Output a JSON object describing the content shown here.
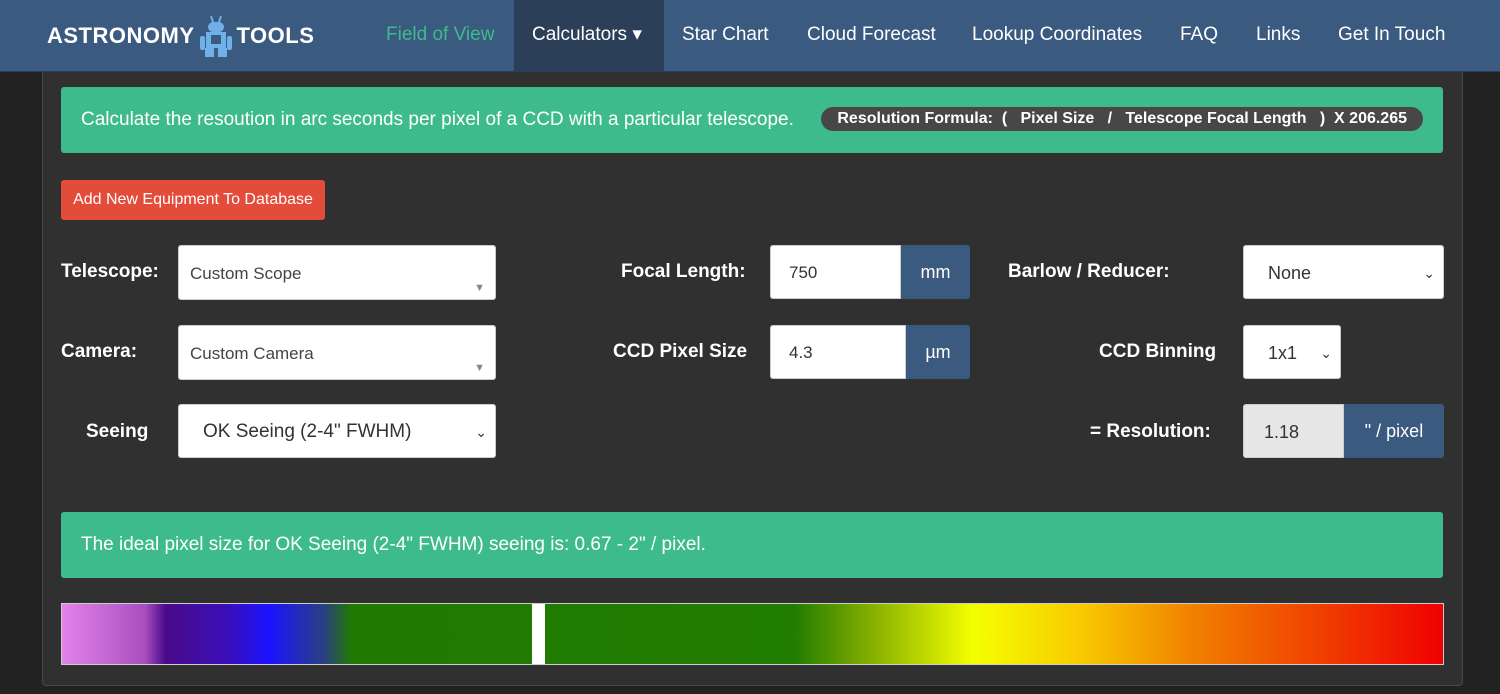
{
  "nav": {
    "logo_text_left": "ASTRONOMY",
    "logo_text_right": "TOOLS",
    "items": [
      {
        "label": "Field of View",
        "active": true
      },
      {
        "label": "Calculators ▾"
      },
      {
        "label": "Star Chart"
      },
      {
        "label": "Cloud Forecast"
      },
      {
        "label": "Lookup Coordinates"
      },
      {
        "label": "FAQ"
      },
      {
        "label": "Links"
      },
      {
        "label": "Get In Touch"
      }
    ]
  },
  "intro": {
    "text": "Calculate the resoution in arc seconds per pixel of a CCD with a particular telescope.",
    "formula": "Resolution Formula:  (   Pixel Size   /   Telescope Focal Length   )  X 206.265"
  },
  "add_equipment_label": "Add New Equipment To Database",
  "form": {
    "telescope_label": "Telescope:",
    "telescope_value": "Custom Scope",
    "camera_label": "Camera:",
    "camera_value": "Custom Camera",
    "seeing_label": "Seeing",
    "seeing_value": "OK Seeing (2-4\" FWHM)",
    "focal_length_label": "Focal Length:",
    "focal_length_value": "750",
    "focal_length_unit": "mm",
    "pixel_size_label": "CCD Pixel Size",
    "pixel_size_value": "4.3",
    "pixel_size_unit": "µm",
    "barlow_label": "Barlow / Reducer:",
    "barlow_value": "None",
    "binning_label": "CCD Binning",
    "binning_value": "1x1",
    "resolution_label": "=  Resolution:",
    "resolution_value": "1.18",
    "resolution_unit": "\" / pixel"
  },
  "ideal_text": "The ideal pixel size for OK Seeing (2-4\" FWHM) seeing is: 0.67 - 2\" / pixel.",
  "spectrum": {
    "marker_fraction": 0.34
  },
  "colors": {
    "nav": "#3b5a80",
    "accent": "#3dbb8d",
    "danger": "#e34c3a",
    "panel": "#303030"
  }
}
